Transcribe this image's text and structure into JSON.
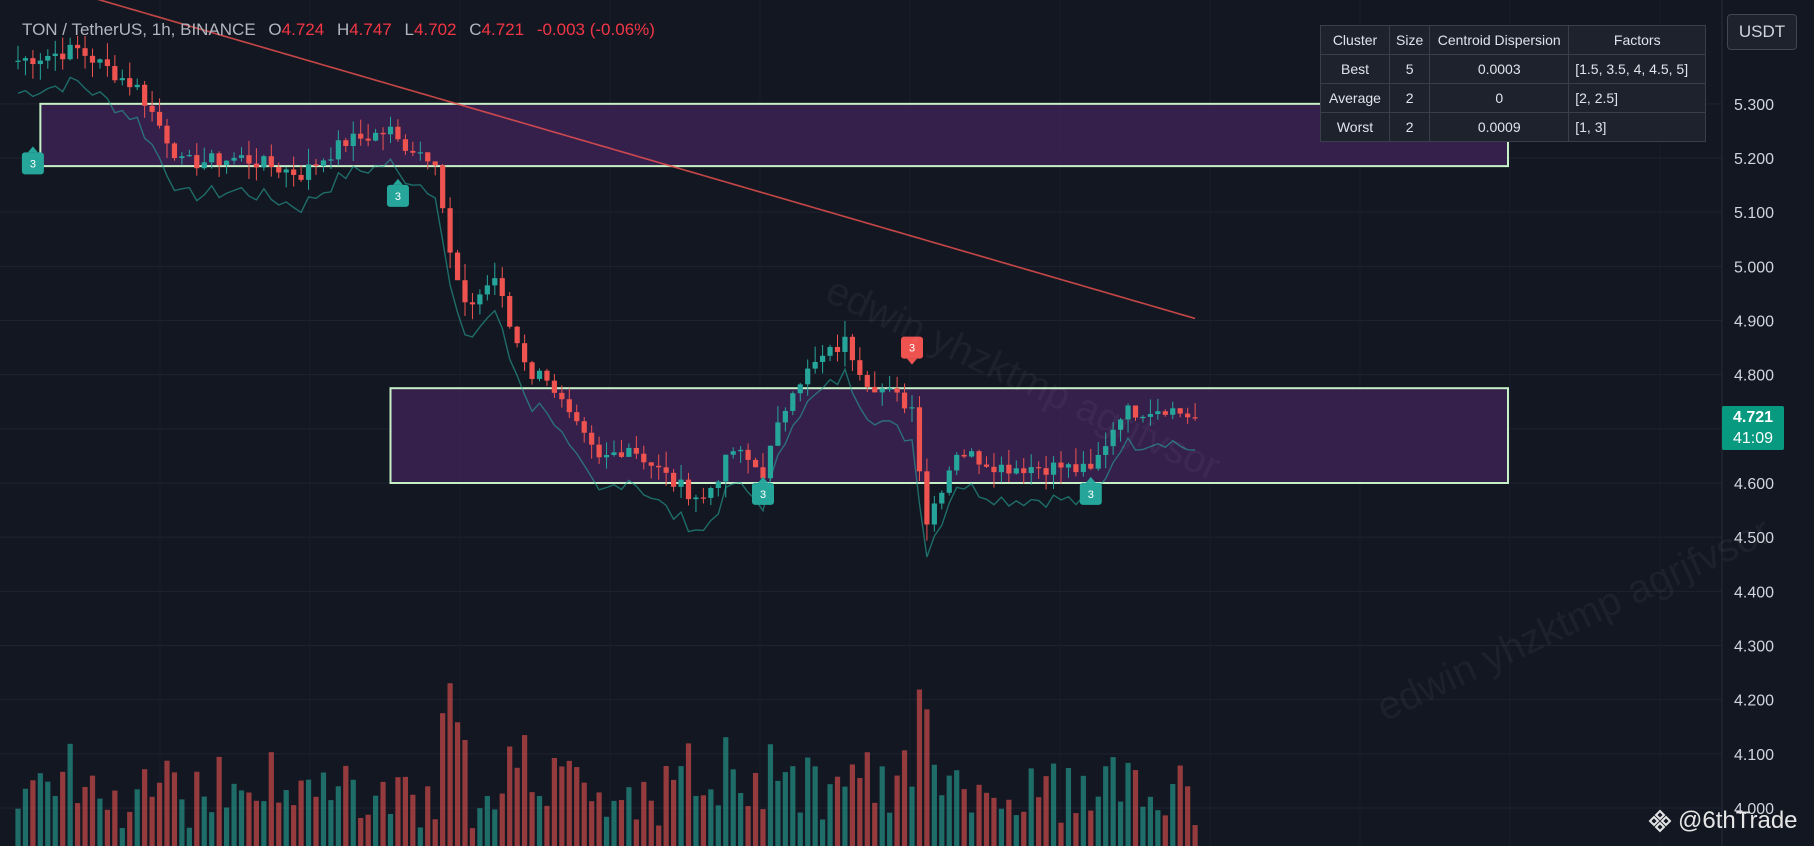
{
  "legend": {
    "symbol": "TON / TetherUS, 1h, BINANCE",
    "o_label": "O",
    "open": "4.724",
    "h_label": "H",
    "high": "4.747",
    "l_label": "L",
    "low": "4.702",
    "c_label": "C",
    "close": "4.721",
    "change": "-0.003 (-0.06%)"
  },
  "currency_button": "USDT",
  "price_tag": {
    "price": "4.721",
    "countdown": "41:09"
  },
  "cluster_table": {
    "headers": [
      "Cluster",
      "Size",
      "Centroid Dispersion",
      "Factors"
    ],
    "rows": [
      [
        "Best",
        "5",
        "0.0003",
        "[1.5, 3.5, 4, 4.5, 5]"
      ],
      [
        "Average",
        "2",
        "0",
        "[2, 2.5]"
      ],
      [
        "Worst",
        "2",
        "0.0009",
        "[1, 3]"
      ]
    ]
  },
  "watermark": "edwin yhzktmp agrjfvsor",
  "brand": "@6thTrade",
  "colors": {
    "up": "#26a69a",
    "down": "#ef5350",
    "zone_fill": "#3c2152",
    "zone_border": "#c8f0c8",
    "background": "#131722"
  },
  "chart_data": {
    "type": "candlestick",
    "ylim": [
      3.995,
      5.44
    ],
    "y_ticks": [
      "5.300",
      "5.200",
      "5.100",
      "5.000",
      "4.900",
      "4.800",
      "4.700",
      "4.600",
      "4.500",
      "4.400",
      "4.300",
      "4.200",
      "4.100",
      "4.000"
    ],
    "zones": [
      {
        "price_top": 5.3,
        "price_bottom": 5.185,
        "start_bar": 3,
        "end_bar": 200
      },
      {
        "price_top": 4.775,
        "price_bottom": 4.6,
        "start_bar": 50,
        "end_bar": 200
      }
    ],
    "signals": [
      {
        "bar": 2,
        "price": 5.19,
        "label": "3",
        "type": "buy"
      },
      {
        "bar": 51,
        "price": 5.13,
        "label": "3",
        "type": "buy"
      },
      {
        "bar": 100,
        "price": 4.58,
        "label": "3",
        "type": "buy"
      },
      {
        "bar": 120,
        "price": 4.85,
        "label": "3",
        "type": "sell"
      },
      {
        "bar": 144,
        "price": 4.58,
        "label": "3",
        "type": "buy"
      }
    ],
    "anchors": [
      [
        0,
        5.38
      ],
      [
        8,
        5.4
      ],
      [
        16,
        5.33
      ],
      [
        22,
        5.19
      ],
      [
        30,
        5.2
      ],
      [
        38,
        5.17
      ],
      [
        44,
        5.23
      ],
      [
        50,
        5.25
      ],
      [
        51,
        5.23
      ],
      [
        56,
        5.2
      ],
      [
        58,
        5.02
      ],
      [
        60,
        4.92
      ],
      [
        64,
        4.98
      ],
      [
        66,
        4.89
      ],
      [
        69,
        4.8
      ],
      [
        71,
        4.8
      ],
      [
        74,
        4.72
      ],
      [
        78,
        4.64
      ],
      [
        82,
        4.67
      ],
      [
        88,
        4.6
      ],
      [
        92,
        4.57
      ],
      [
        96,
        4.66
      ],
      [
        100,
        4.62
      ],
      [
        104,
        4.78
      ],
      [
        108,
        4.83
      ],
      [
        111,
        4.86
      ],
      [
        114,
        4.79
      ],
      [
        120,
        4.74
      ],
      [
        122,
        4.53
      ],
      [
        126,
        4.66
      ],
      [
        132,
        4.63
      ],
      [
        140,
        4.63
      ],
      [
        144,
        4.62
      ],
      [
        148,
        4.73
      ],
      [
        154,
        4.74
      ],
      [
        158,
        4.72
      ]
    ]
  }
}
